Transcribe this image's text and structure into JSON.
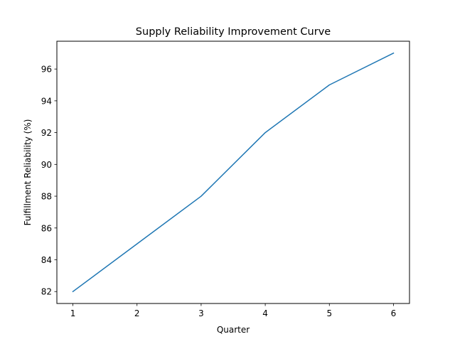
{
  "chart_data": {
    "type": "line",
    "title": "Supply Reliability Improvement Curve",
    "xlabel": "Quarter",
    "ylabel": "Fulfillment Reliability (%)",
    "x": [
      1,
      2,
      3,
      4,
      5,
      6
    ],
    "series": [
      {
        "values": [
          82,
          85,
          88,
          92,
          95,
          97
        ],
        "color": "#1f77b4"
      }
    ],
    "xlim": [
      0.75,
      6.25
    ],
    "ylim": [
      81.25,
      97.75
    ],
    "xticks": [
      1,
      2,
      3,
      4,
      5,
      6
    ],
    "yticks": [
      82,
      84,
      86,
      88,
      90,
      92,
      94,
      96
    ],
    "grid": false,
    "legend": "none"
  }
}
